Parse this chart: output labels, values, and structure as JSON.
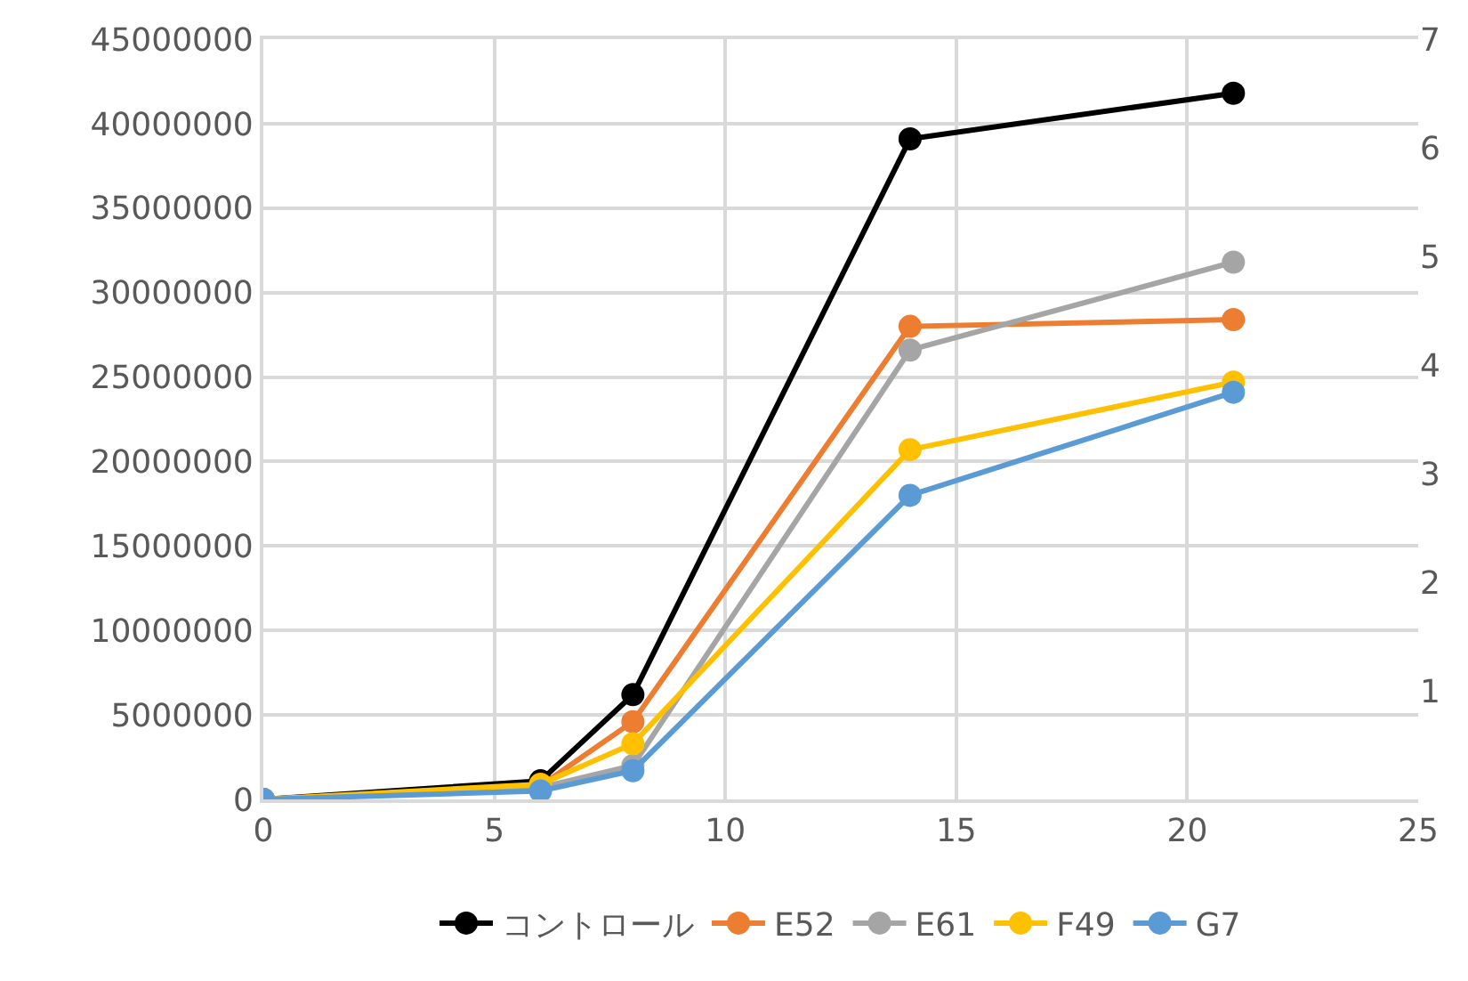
{
  "chart_data": {
    "type": "line",
    "x": [
      0,
      6,
      8,
      14,
      21
    ],
    "series": [
      {
        "name": "コントロール",
        "color": "#000000",
        "values": [
          0,
          1100000,
          6200000,
          39100000,
          41800000
        ]
      },
      {
        "name": "E52",
        "color": "#ed7d31",
        "values": [
          0,
          800000,
          4600000,
          28000000,
          28400000
        ]
      },
      {
        "name": "E61",
        "color": "#a5a5a5",
        "values": [
          0,
          700000,
          2000000,
          26600000,
          31800000
        ]
      },
      {
        "name": "F49",
        "color": "#ffc000",
        "values": [
          0,
          900000,
          3300000,
          20700000,
          24700000
        ]
      },
      {
        "name": "G7",
        "color": "#5b9bd5",
        "values": [
          0,
          500000,
          1700000,
          18000000,
          24100000
        ]
      }
    ],
    "xlim": [
      0,
      25
    ],
    "xticks": [
      0,
      5,
      10,
      15,
      20,
      25
    ],
    "ylim": [
      0,
      45000000
    ],
    "yticks": [
      0,
      5000000,
      10000000,
      15000000,
      20000000,
      25000000,
      30000000,
      35000000,
      40000000,
      45000000
    ],
    "y2lim": [
      0,
      7
    ],
    "y2ticks": [
      1,
      2,
      3,
      4,
      5,
      6,
      7
    ],
    "grid": true,
    "legend": "bottom",
    "marker": "circle",
    "line_style": "solid"
  }
}
